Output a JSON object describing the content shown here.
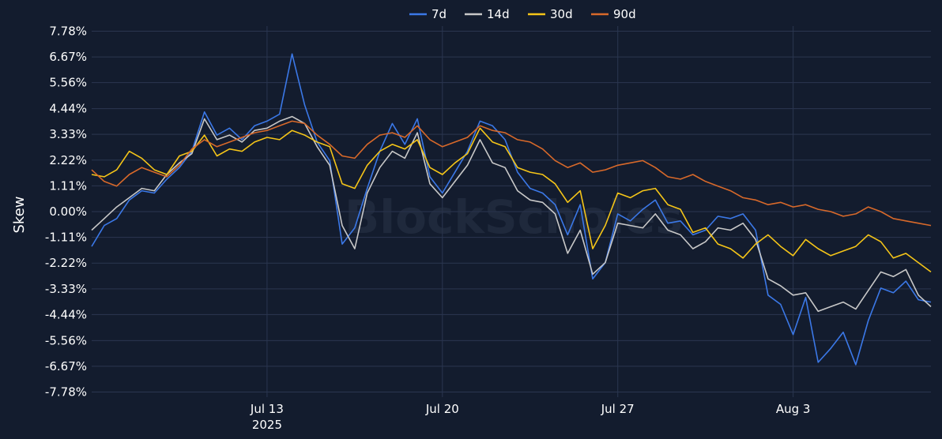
{
  "watermark": "BlockScholes",
  "chart_data": {
    "type": "line",
    "title": "",
    "xlabel": "",
    "ylabel": "Skew",
    "x_range": [
      "2025-07-06T00:00",
      "2025-08-08T12:00"
    ],
    "ylim": [
      -8.0,
      8.0
    ],
    "y_ticks": [
      -7.78,
      -6.67,
      -5.56,
      -4.44,
      -3.33,
      -2.22,
      -1.11,
      0.0,
      1.11,
      2.22,
      3.33,
      4.44,
      5.56,
      6.67,
      7.78
    ],
    "y_tick_labels": [
      "-7.78%",
      "-6.67%",
      "-5.56%",
      "-4.44%",
      "-3.33%",
      "-2.22%",
      "-1.11%",
      "0.00%",
      "1.11%",
      "2.22%",
      "3.33%",
      "4.44%",
      "5.56%",
      "6.67%",
      "7.78%"
    ],
    "x_ticks": [
      {
        "date": "2025-07-13",
        "label": "Jul 13",
        "sublabel": "2025"
      },
      {
        "date": "2025-07-20",
        "label": "Jul 20",
        "sublabel": ""
      },
      {
        "date": "2025-07-27",
        "label": "Jul 27",
        "sublabel": ""
      },
      {
        "date": "2025-08-03",
        "label": "Aug 3",
        "sublabel": ""
      }
    ],
    "grid": true,
    "legend_position": "top-center",
    "series": [
      {
        "name": "7d",
        "color": "#3b78e7",
        "x": [
          "2025-07-06T00:00",
          "2025-07-06T12:00",
          "2025-07-07T00:00",
          "2025-07-07T12:00",
          "2025-07-08T00:00",
          "2025-07-08T12:00",
          "2025-07-09T00:00",
          "2025-07-09T12:00",
          "2025-07-10T00:00",
          "2025-07-10T12:00",
          "2025-07-11T00:00",
          "2025-07-11T12:00",
          "2025-07-12T00:00",
          "2025-07-12T12:00",
          "2025-07-13T00:00",
          "2025-07-13T12:00",
          "2025-07-14T00:00",
          "2025-07-14T12:00",
          "2025-07-15T00:00",
          "2025-07-15T12:00",
          "2025-07-16T00:00",
          "2025-07-16T12:00",
          "2025-07-17T00:00",
          "2025-07-17T12:00",
          "2025-07-18T00:00",
          "2025-07-18T12:00",
          "2025-07-19T00:00",
          "2025-07-19T12:00",
          "2025-07-20T00:00",
          "2025-07-20T12:00",
          "2025-07-21T00:00",
          "2025-07-21T12:00",
          "2025-07-22T00:00",
          "2025-07-22T12:00",
          "2025-07-23T00:00",
          "2025-07-23T12:00",
          "2025-07-24T00:00",
          "2025-07-24T12:00",
          "2025-07-25T00:00",
          "2025-07-25T12:00",
          "2025-07-26T00:00",
          "2025-07-26T12:00",
          "2025-07-27T00:00",
          "2025-07-27T12:00",
          "2025-07-28T00:00",
          "2025-07-28T12:00",
          "2025-07-29T00:00",
          "2025-07-29T12:00",
          "2025-07-30T00:00",
          "2025-07-30T12:00",
          "2025-07-31T00:00",
          "2025-07-31T12:00",
          "2025-08-01T00:00",
          "2025-08-01T12:00",
          "2025-08-02T00:00",
          "2025-08-02T12:00",
          "2025-08-03T00:00",
          "2025-08-03T12:00",
          "2025-08-04T00:00",
          "2025-08-04T12:00",
          "2025-08-05T00:00",
          "2025-08-05T12:00",
          "2025-08-06T00:00",
          "2025-08-06T12:00",
          "2025-08-07T00:00",
          "2025-08-07T12:00",
          "2025-08-08T00:00",
          "2025-08-08T12:00"
        ],
        "y": [
          -1.5,
          -0.6,
          -0.3,
          0.5,
          0.9,
          0.8,
          1.4,
          1.9,
          2.6,
          4.3,
          3.3,
          3.6,
          3.1,
          3.7,
          3.9,
          4.2,
          6.8,
          4.6,
          3.0,
          2.2,
          -1.4,
          -0.7,
          1.0,
          2.6,
          3.8,
          2.9,
          4.0,
          1.5,
          0.8,
          1.7,
          2.6,
          3.9,
          3.7,
          3.1,
          1.7,
          1.0,
          0.8,
          0.3,
          -1.0,
          0.3,
          -2.9,
          -2.2,
          -0.1,
          -0.4,
          0.1,
          0.5,
          -0.5,
          -0.4,
          -1.0,
          -0.8,
          -0.2,
          -0.3,
          -0.1,
          -0.8,
          -3.6,
          -4.0,
          -5.3,
          -3.7,
          -6.5,
          -5.9,
          -5.2,
          -6.6,
          -4.7,
          -3.3,
          -3.5,
          -3.0,
          -3.8,
          -3.9
        ]
      },
      {
        "name": "14d",
        "color": "#c8c8c8",
        "x": [
          "2025-07-06T00:00",
          "2025-07-06T12:00",
          "2025-07-07T00:00",
          "2025-07-07T12:00",
          "2025-07-08T00:00",
          "2025-07-08T12:00",
          "2025-07-09T00:00",
          "2025-07-09T12:00",
          "2025-07-10T00:00",
          "2025-07-10T12:00",
          "2025-07-11T00:00",
          "2025-07-11T12:00",
          "2025-07-12T00:00",
          "2025-07-12T12:00",
          "2025-07-13T00:00",
          "2025-07-13T12:00",
          "2025-07-14T00:00",
          "2025-07-14T12:00",
          "2025-07-15T00:00",
          "2025-07-15T12:00",
          "2025-07-16T00:00",
          "2025-07-16T12:00",
          "2025-07-17T00:00",
          "2025-07-17T12:00",
          "2025-07-18T00:00",
          "2025-07-18T12:00",
          "2025-07-19T00:00",
          "2025-07-19T12:00",
          "2025-07-20T00:00",
          "2025-07-20T12:00",
          "2025-07-21T00:00",
          "2025-07-21T12:00",
          "2025-07-22T00:00",
          "2025-07-22T12:00",
          "2025-07-23T00:00",
          "2025-07-23T12:00",
          "2025-07-24T00:00",
          "2025-07-24T12:00",
          "2025-07-25T00:00",
          "2025-07-25T12:00",
          "2025-07-26T00:00",
          "2025-07-26T12:00",
          "2025-07-27T00:00",
          "2025-07-27T12:00",
          "2025-07-28T00:00",
          "2025-07-28T12:00",
          "2025-07-29T00:00",
          "2025-07-29T12:00",
          "2025-07-30T00:00",
          "2025-07-30T12:00",
          "2025-07-31T00:00",
          "2025-07-31T12:00",
          "2025-08-01T00:00",
          "2025-08-01T12:00",
          "2025-08-02T00:00",
          "2025-08-02T12:00",
          "2025-08-03T00:00",
          "2025-08-03T12:00",
          "2025-08-04T00:00",
          "2025-08-04T12:00",
          "2025-08-05T00:00",
          "2025-08-05T12:00",
          "2025-08-06T00:00",
          "2025-08-06T12:00",
          "2025-08-07T00:00",
          "2025-08-07T12:00",
          "2025-08-08T00:00",
          "2025-08-08T12:00"
        ],
        "y": [
          -0.8,
          -0.3,
          0.2,
          0.6,
          1.0,
          0.9,
          1.6,
          2.1,
          2.5,
          4.0,
          3.1,
          3.3,
          3.0,
          3.5,
          3.6,
          3.9,
          4.1,
          3.8,
          2.8,
          2.0,
          -0.6,
          -1.6,
          0.8,
          1.9,
          2.6,
          2.3,
          3.4,
          1.2,
          0.6,
          1.3,
          2.0,
          3.1,
          2.1,
          1.9,
          0.9,
          0.5,
          0.4,
          -0.1,
          -1.8,
          -0.8,
          -2.7,
          -2.2,
          -0.5,
          -0.6,
          -0.7,
          -0.1,
          -0.8,
          -1.0,
          -1.6,
          -1.3,
          -0.7,
          -0.8,
          -0.5,
          -1.2,
          -2.9,
          -3.2,
          -3.6,
          -3.5,
          -4.3,
          -4.1,
          -3.9,
          -4.2,
          -3.4,
          -2.6,
          -2.8,
          -2.5,
          -3.6,
          -4.1
        ]
      },
      {
        "name": "30d",
        "color": "#f5c518",
        "x": [
          "2025-07-06T00:00",
          "2025-07-06T12:00",
          "2025-07-07T00:00",
          "2025-07-07T12:00",
          "2025-07-08T00:00",
          "2025-07-08T12:00",
          "2025-07-09T00:00",
          "2025-07-09T12:00",
          "2025-07-10T00:00",
          "2025-07-10T12:00",
          "2025-07-11T00:00",
          "2025-07-11T12:00",
          "2025-07-12T00:00",
          "2025-07-12T12:00",
          "2025-07-13T00:00",
          "2025-07-13T12:00",
          "2025-07-14T00:00",
          "2025-07-14T12:00",
          "2025-07-15T00:00",
          "2025-07-15T12:00",
          "2025-07-16T00:00",
          "2025-07-16T12:00",
          "2025-07-17T00:00",
          "2025-07-17T12:00",
          "2025-07-18T00:00",
          "2025-07-18T12:00",
          "2025-07-19T00:00",
          "2025-07-19T12:00",
          "2025-07-20T00:00",
          "2025-07-20T12:00",
          "2025-07-21T00:00",
          "2025-07-21T12:00",
          "2025-07-22T00:00",
          "2025-07-22T12:00",
          "2025-07-23T00:00",
          "2025-07-23T12:00",
          "2025-07-24T00:00",
          "2025-07-24T12:00",
          "2025-07-25T00:00",
          "2025-07-25T12:00",
          "2025-07-26T00:00",
          "2025-07-26T12:00",
          "2025-07-27T00:00",
          "2025-07-27T12:00",
          "2025-07-28T00:00",
          "2025-07-28T12:00",
          "2025-07-29T00:00",
          "2025-07-29T12:00",
          "2025-07-30T00:00",
          "2025-07-30T12:00",
          "2025-07-31T00:00",
          "2025-07-31T12:00",
          "2025-08-01T00:00",
          "2025-08-01T12:00",
          "2025-08-02T00:00",
          "2025-08-02T12:00",
          "2025-08-03T00:00",
          "2025-08-03T12:00",
          "2025-08-04T00:00",
          "2025-08-04T12:00",
          "2025-08-05T00:00",
          "2025-08-05T12:00",
          "2025-08-06T00:00",
          "2025-08-06T12:00",
          "2025-08-07T00:00",
          "2025-08-07T12:00",
          "2025-08-08T00:00",
          "2025-08-08T12:00"
        ],
        "y": [
          1.6,
          1.5,
          1.8,
          2.6,
          2.3,
          1.8,
          1.6,
          2.4,
          2.6,
          3.3,
          2.4,
          2.7,
          2.6,
          3.0,
          3.2,
          3.1,
          3.5,
          3.3,
          3.0,
          2.8,
          1.2,
          1.0,
          2.0,
          2.6,
          2.9,
          2.7,
          3.1,
          1.9,
          1.6,
          2.1,
          2.5,
          3.6,
          3.0,
          2.8,
          1.9,
          1.7,
          1.6,
          1.2,
          0.4,
          0.9,
          -1.6,
          -0.6,
          0.8,
          0.6,
          0.9,
          1.0,
          0.3,
          0.1,
          -0.9,
          -0.7,
          -1.4,
          -1.6,
          -2.0,
          -1.4,
          -1.0,
          -1.5,
          -1.9,
          -1.2,
          -1.6,
          -1.9,
          -1.7,
          -1.5,
          -1.0,
          -1.3,
          -2.0,
          -1.8,
          -2.2,
          -2.6
        ]
      },
      {
        "name": "90d",
        "color": "#d8692a",
        "x": [
          "2025-07-06T00:00",
          "2025-07-06T12:00",
          "2025-07-07T00:00",
          "2025-07-07T12:00",
          "2025-07-08T00:00",
          "2025-07-08T12:00",
          "2025-07-09T00:00",
          "2025-07-09T12:00",
          "2025-07-10T00:00",
          "2025-07-10T12:00",
          "2025-07-11T00:00",
          "2025-07-11T12:00",
          "2025-07-12T00:00",
          "2025-07-12T12:00",
          "2025-07-13T00:00",
          "2025-07-13T12:00",
          "2025-07-14T00:00",
          "2025-07-14T12:00",
          "2025-07-15T00:00",
          "2025-07-15T12:00",
          "2025-07-16T00:00",
          "2025-07-16T12:00",
          "2025-07-17T00:00",
          "2025-07-17T12:00",
          "2025-07-18T00:00",
          "2025-07-18T12:00",
          "2025-07-19T00:00",
          "2025-07-19T12:00",
          "2025-07-20T00:00",
          "2025-07-20T12:00",
          "2025-07-21T00:00",
          "2025-07-21T12:00",
          "2025-07-22T00:00",
          "2025-07-22T12:00",
          "2025-07-23T00:00",
          "2025-07-23T12:00",
          "2025-07-24T00:00",
          "2025-07-24T12:00",
          "2025-07-25T00:00",
          "2025-07-25T12:00",
          "2025-07-26T00:00",
          "2025-07-26T12:00",
          "2025-07-27T00:00",
          "2025-07-27T12:00",
          "2025-07-28T00:00",
          "2025-07-28T12:00",
          "2025-07-29T00:00",
          "2025-07-29T12:00",
          "2025-07-30T00:00",
          "2025-07-30T12:00",
          "2025-07-31T00:00",
          "2025-07-31T12:00",
          "2025-08-01T00:00",
          "2025-08-01T12:00",
          "2025-08-02T00:00",
          "2025-08-02T12:00",
          "2025-08-03T00:00",
          "2025-08-03T12:00",
          "2025-08-04T00:00",
          "2025-08-04T12:00",
          "2025-08-05T00:00",
          "2025-08-05T12:00",
          "2025-08-06T00:00",
          "2025-08-06T12:00",
          "2025-08-07T00:00",
          "2025-08-07T12:00",
          "2025-08-08T00:00",
          "2025-08-08T12:00"
        ],
        "y": [
          1.8,
          1.3,
          1.1,
          1.6,
          1.9,
          1.7,
          1.5,
          2.0,
          2.7,
          3.1,
          2.8,
          3.0,
          3.2,
          3.4,
          3.5,
          3.7,
          3.9,
          3.8,
          3.3,
          2.9,
          2.4,
          2.3,
          2.9,
          3.3,
          3.4,
          3.2,
          3.7,
          3.1,
          2.8,
          3.0,
          3.2,
          3.7,
          3.5,
          3.4,
          3.1,
          3.0,
          2.7,
          2.2,
          1.9,
          2.1,
          1.7,
          1.8,
          2.0,
          2.1,
          2.2,
          1.9,
          1.5,
          1.4,
          1.6,
          1.3,
          1.1,
          0.9,
          0.6,
          0.5,
          0.3,
          0.4,
          0.2,
          0.3,
          0.1,
          0.0,
          -0.2,
          -0.1,
          0.2,
          0.0,
          -0.3,
          -0.4,
          -0.5,
          -0.6
        ]
      }
    ]
  }
}
